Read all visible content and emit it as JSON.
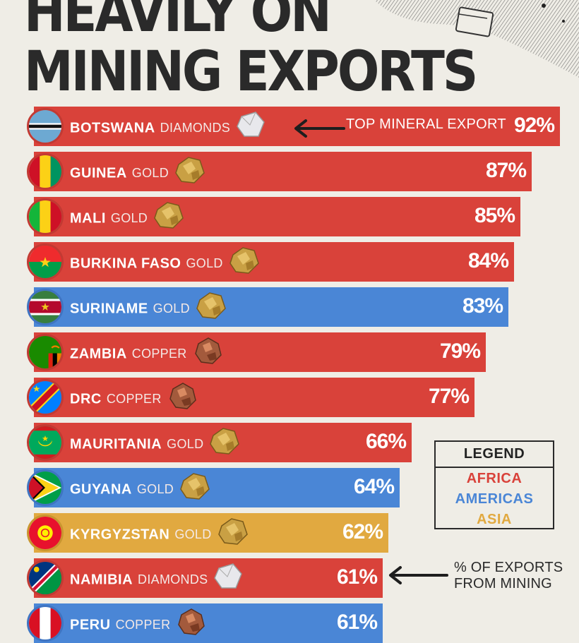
{
  "header": {
    "title_line1": "HEAVILY ON",
    "title_line2": "MINING EXPORTS"
  },
  "colors": {
    "africa": "#d9423a",
    "americas": "#4a86d6",
    "asia": "#e1a940",
    "background": "#efede6"
  },
  "annotations": {
    "top_mineral": "TOP MINERAL EXPORT",
    "pct_line1": "% OF EXPORTS",
    "pct_line2": "FROM MINING"
  },
  "legend": {
    "title": "LEGEND",
    "africa": "AFRICA",
    "americas": "AMERICAS",
    "asia": "ASIA"
  },
  "chart_data": {
    "type": "bar",
    "orientation": "horizontal",
    "title": "HEAVILY ON MINING EXPORTS",
    "xlim": [
      0,
      100
    ],
    "categories": [
      "BOTSWANA",
      "GUINEA",
      "MALI",
      "BURKINA FASO",
      "SURINAME",
      "ZAMBIA",
      "DRC",
      "MAURITANIA",
      "GUYANA",
      "KYRGYZSTAN",
      "NAMIBIA",
      "PERU"
    ],
    "rows": [
      {
        "country": "BOTSWANA",
        "mineral": "DIAMONDS",
        "value": 92,
        "label": "92%",
        "region": "africa",
        "mineral_icon": "diamond-icon",
        "flag": "botswana-flag-icon"
      },
      {
        "country": "GUINEA",
        "mineral": "GOLD",
        "value": 87,
        "label": "87%",
        "region": "africa",
        "mineral_icon": "gold-nugget-icon",
        "flag": "guinea-flag-icon"
      },
      {
        "country": "MALI",
        "mineral": "GOLD",
        "value": 85,
        "label": "85%",
        "region": "africa",
        "mineral_icon": "gold-nugget-icon",
        "flag": "mali-flag-icon"
      },
      {
        "country": "BURKINA FASO",
        "mineral": "GOLD",
        "value": 84,
        "label": "84%",
        "region": "africa",
        "mineral_icon": "gold-nugget-icon",
        "flag": "burkina-faso-flag-icon"
      },
      {
        "country": "SURINAME",
        "mineral": "GOLD",
        "value": 83,
        "label": "83%",
        "region": "americas",
        "mineral_icon": "gold-nugget-icon",
        "flag": "suriname-flag-icon"
      },
      {
        "country": "ZAMBIA",
        "mineral": "COPPER",
        "value": 79,
        "label": "79%",
        "region": "africa",
        "mineral_icon": "copper-ore-icon",
        "flag": "zambia-flag-icon"
      },
      {
        "country": "DRC",
        "mineral": "COPPER",
        "value": 77,
        "label": "77%",
        "region": "africa",
        "mineral_icon": "copper-ore-icon",
        "flag": "drc-flag-icon"
      },
      {
        "country": "MAURITANIA",
        "mineral": "GOLD",
        "value": 66,
        "label": "66%",
        "region": "africa",
        "mineral_icon": "gold-nugget-icon",
        "flag": "mauritania-flag-icon"
      },
      {
        "country": "GUYANA",
        "mineral": "GOLD",
        "value": 64,
        "label": "64%",
        "region": "americas",
        "mineral_icon": "gold-nugget-icon",
        "flag": "guyana-flag-icon"
      },
      {
        "country": "KYRGYZSTAN",
        "mineral": "GOLD",
        "value": 62,
        "label": "62%",
        "region": "asia",
        "mineral_icon": "gold-nugget-icon",
        "flag": "kyrgyzstan-flag-icon"
      },
      {
        "country": "NAMIBIA",
        "mineral": "DIAMONDS",
        "value": 61,
        "label": "61%",
        "region": "africa",
        "mineral_icon": "diamond-icon",
        "flag": "namibia-flag-icon"
      },
      {
        "country": "PERU",
        "mineral": "COPPER",
        "value": 61,
        "label": "61%",
        "region": "americas",
        "mineral_icon": "copper-ore-icon",
        "flag": "peru-flag-icon"
      }
    ]
  }
}
